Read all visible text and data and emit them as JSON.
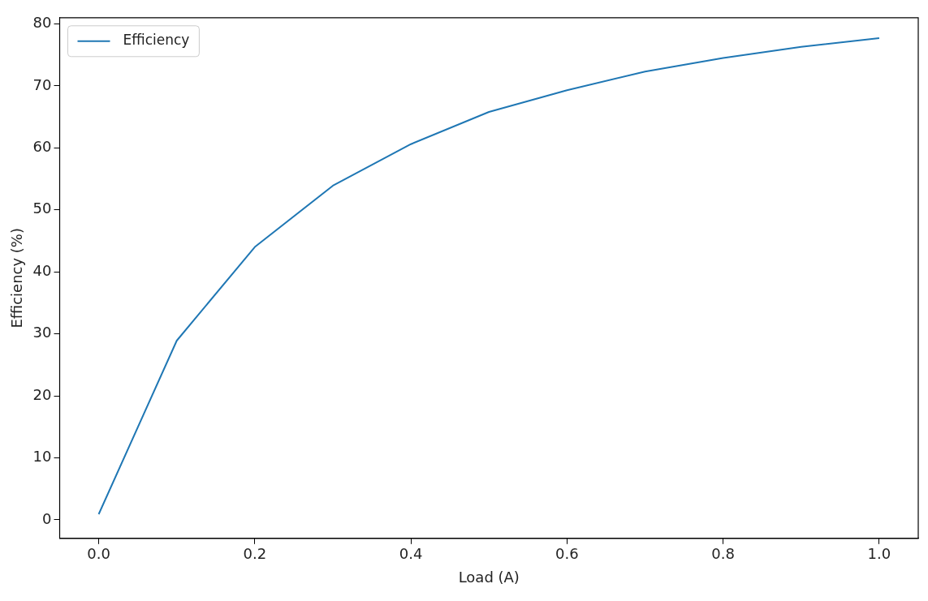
{
  "chart_data": {
    "type": "line",
    "xlabel": "Load (A)",
    "ylabel": "Efficiency (%)",
    "x": [
      0,
      0.1,
      0.2,
      0.3,
      0.4,
      0.5,
      0.6,
      0.7,
      0.8,
      0.9,
      1.0
    ],
    "series": [
      {
        "name": "Efficiency",
        "color": "#1f77b4",
        "values": [
          0.9,
          28.9,
          44.0,
          53.9,
          60.6,
          65.8,
          69.3,
          72.3,
          74.5,
          76.3,
          77.7
        ]
      }
    ],
    "xlim": [
      -0.05,
      1.05
    ],
    "xticks": [
      {
        "value": 0,
        "label": "0.0"
      },
      0.2,
      0.4,
      0.6,
      0.8,
      {
        "value": 1,
        "label": "1.0"
      }
    ],
    "ylim": [
      -3,
      81
    ],
    "yticks": [
      0,
      10,
      20,
      30,
      40,
      50,
      60,
      70,
      80
    ],
    "grid": false,
    "legend": "top left",
    "marker": "none",
    "line_style": "solid"
  }
}
